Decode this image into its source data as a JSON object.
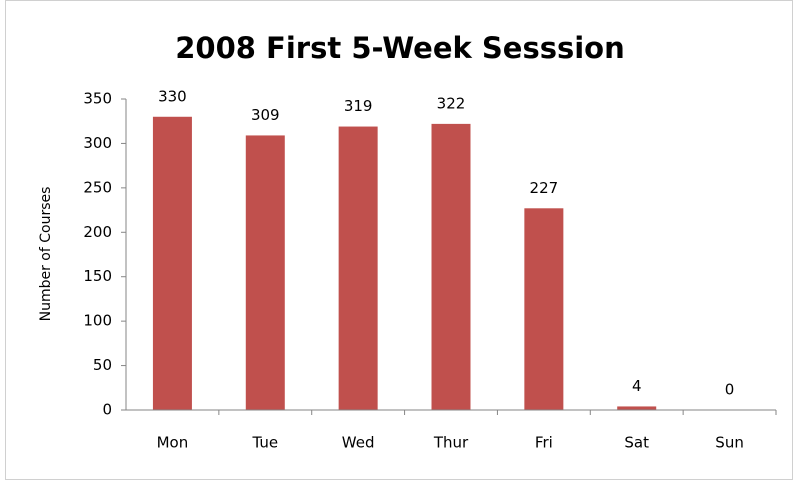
{
  "chart_data": {
    "type": "bar",
    "title": "2008 First 5-Week Sesssion",
    "y_label": "Number of Courses",
    "categories": [
      "Mon",
      "Tue",
      "Wed",
      "Thur",
      "Fri",
      "Sat",
      "Sun"
    ],
    "values": [
      330,
      309,
      319,
      322,
      227,
      4,
      0
    ],
    "color": "#c0504d",
    "ylim": [
      0,
      350
    ],
    "yticks": [
      0,
      50,
      100,
      150,
      200,
      250,
      300,
      350
    ],
    "grid": false,
    "data_labels": true
  }
}
